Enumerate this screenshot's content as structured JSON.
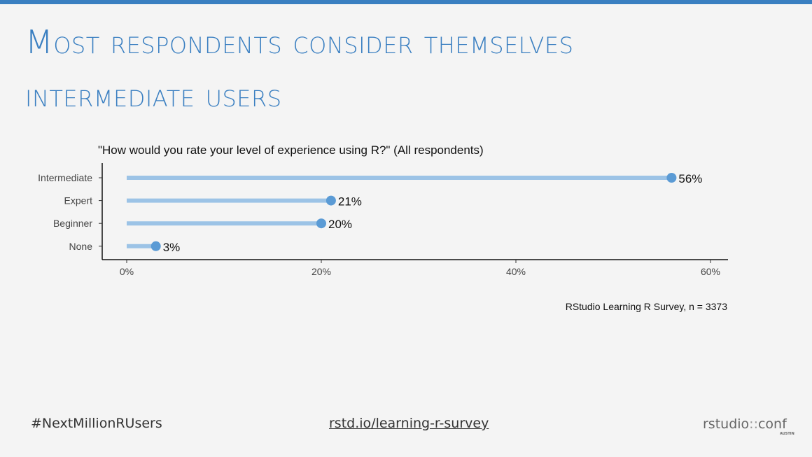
{
  "slide": {
    "title": "Most respondents consider themselves intermediate users"
  },
  "chart_data": {
    "type": "lollipop",
    "title": "\"How would you rate your level of experience using R?\" (All respondents)",
    "categories": [
      "Intermediate",
      "Expert",
      "Beginner",
      "None"
    ],
    "values": [
      56,
      21,
      20,
      3
    ],
    "value_labels": [
      "56%",
      "21%",
      "20%",
      "3%"
    ],
    "xlim": [
      0,
      60
    ],
    "xticks": [
      0,
      20,
      40,
      60
    ],
    "xtick_labels": [
      "0%",
      "20%",
      "40%",
      "60%"
    ],
    "caption": "RStudio Learning R Survey, n = 3373",
    "colors": {
      "stem": "#9cc3e6",
      "point": "#5b9bd5"
    },
    "grid": false
  },
  "footer": {
    "hashtag": "#NextMillionRUsers",
    "link": "rstd.io/learning-r-survey",
    "brand_main": "rstudio",
    "brand_sep": "::",
    "brand_conf": "conf",
    "brand_sub": "AUSTIN"
  },
  "colors": {
    "accent": "#3a7fc1",
    "background": "#f4f4f4"
  }
}
